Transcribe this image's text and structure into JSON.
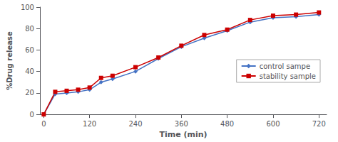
{
  "chart_data": {
    "type": "line",
    "xlabel": "Time (min)",
    "ylabel": "%Drug release",
    "x": [
      0,
      30,
      60,
      90,
      120,
      150,
      180,
      240,
      300,
      360,
      420,
      480,
      540,
      600,
      660,
      720
    ],
    "series": [
      {
        "name": "control sampe",
        "color": "#4472C4",
        "marker": "diamond",
        "values": [
          0,
          19,
          20,
          21,
          23,
          30,
          33,
          40,
          52,
          63,
          71,
          78,
          86,
          90,
          91,
          93
        ]
      },
      {
        "name": "stability sample",
        "color": "#CC0000",
        "marker": "square",
        "values": [
          0,
          21,
          22,
          23,
          25,
          34,
          36,
          44,
          53,
          64,
          74,
          79,
          88,
          92,
          93,
          95
        ]
      }
    ],
    "xlim": [
      -10,
      740
    ],
    "ylim": [
      0,
      100
    ],
    "xticks": [
      0,
      120,
      240,
      360,
      480,
      600,
      720
    ],
    "yticks": [
      0,
      20,
      40,
      60,
      80,
      100
    ],
    "grid": false,
    "legend": "right"
  }
}
